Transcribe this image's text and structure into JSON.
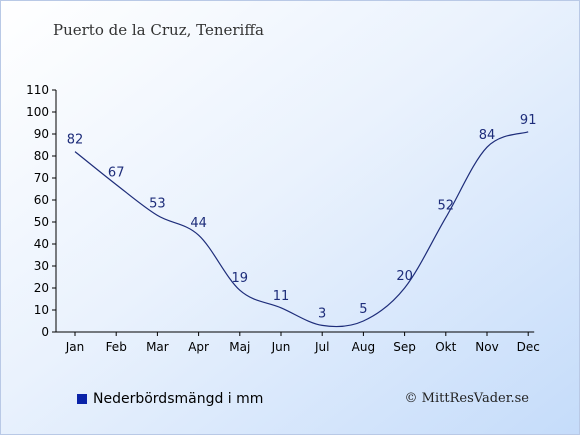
{
  "chart_data": {
    "type": "line",
    "title": "Puerto de la Cruz, Teneriffa",
    "categories": [
      "Jan",
      "Feb",
      "Mar",
      "Apr",
      "Maj",
      "Jun",
      "Jul",
      "Aug",
      "Sep",
      "Okt",
      "Nov",
      "Dec"
    ],
    "series": [
      {
        "name": "Nederbördsmängd i mm",
        "values": [
          82,
          67,
          53,
          44,
          19,
          11,
          3,
          5,
          20,
          52,
          84,
          91
        ],
        "color": "#0a23a8"
      }
    ],
    "y_ticks": [
      0,
      10,
      20,
      30,
      40,
      50,
      60,
      70,
      80,
      90,
      100,
      110
    ],
    "ylim": [
      0,
      110
    ],
    "xlabel": "",
    "ylabel": "",
    "grid": false,
    "legend": "bottom-left"
  },
  "copyright": "© MittResVader.se",
  "colors": {
    "line": "#1e2d7a",
    "label": "#1e2d7a"
  }
}
